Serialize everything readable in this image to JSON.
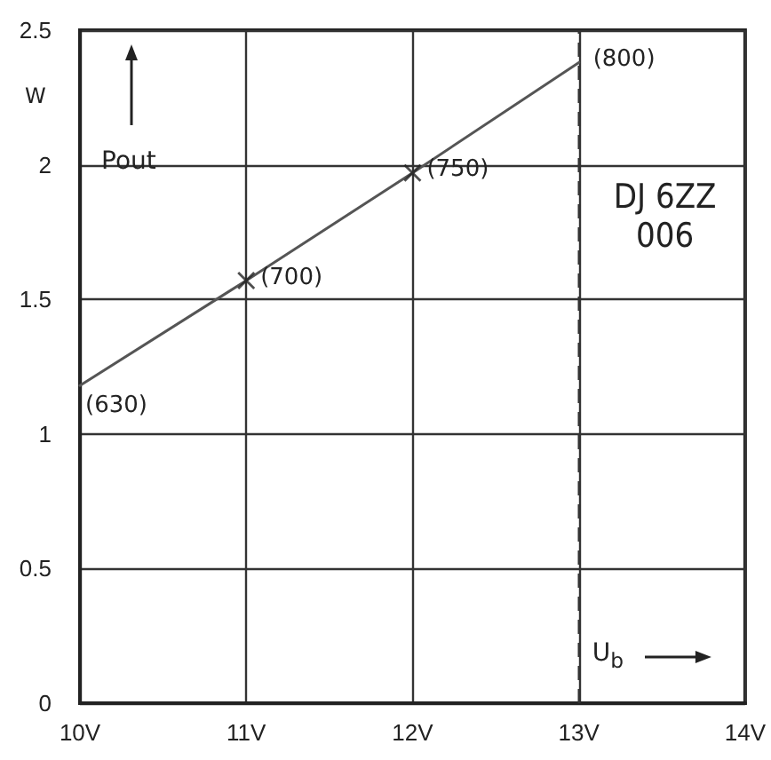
{
  "chart_data": {
    "type": "line",
    "xlabel": "U$_{b}$",
    "ylabel": "Pout",
    "annotations": [
      "W",
      "DJ 6ZZ 006",
      {
        "text": "(630)",
        "x": 10,
        "y": 1.18
      },
      {
        "text": "(700)",
        "x": 11,
        "y": 1.57
      },
      {
        "text": "(750)",
        "x": 12,
        "y": 1.97
      },
      {
        "text": "(800)",
        "x": 13,
        "y": 2.38
      }
    ],
    "x": [
      10,
      11,
      12,
      13
    ],
    "series": [
      {
        "color": "#555555",
        "marker": "none",
        "line_style": "solid",
        "values": [
          1.18,
          1.57,
          1.97,
          2.38
        ]
      },
      {
        "type": "scatter",
        "color": "#222222",
        "marker": "cross",
        "x": [
          11,
          12
        ],
        "values": [
          1.57,
          1.97
        ]
      }
    ],
    "xlim": [
      10,
      14
    ],
    "xticks": [
      {
        "value": 10,
        "label": "10V"
      },
      {
        "value": 11,
        "label": "11V"
      },
      {
        "value": 12,
        "label": "12V"
      },
      {
        "value": 13,
        "label": "13V"
      },
      {
        "value": 14,
        "label": "14V"
      }
    ],
    "ylim": [
      0,
      2.5
    ],
    "yticks": [
      0,
      0.5,
      1,
      1.5,
      2,
      2.5
    ],
    "grid": true,
    "ref_lines": [
      {
        "axis": "x",
        "value": 13,
        "line_style": "dashed",
        "color": "#333333"
      }
    ]
  }
}
